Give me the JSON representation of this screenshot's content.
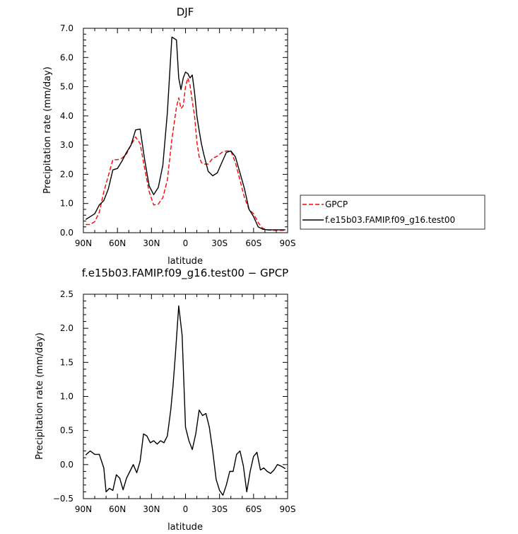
{
  "chart_data": [
    {
      "type": "line",
      "title": "DJF",
      "xlabel": "latitude",
      "ylabel": "Precipitation rate (mm/day)",
      "xlim": [
        90,
        -90
      ],
      "ylim": [
        0,
        7
      ],
      "x_ticks": [
        90,
        60,
        30,
        0,
        -30,
        -60,
        -90
      ],
      "x_tick_labels": [
        "90N",
        "60N",
        "30N",
        "0",
        "30S",
        "60S",
        "90S"
      ],
      "y_ticks": [
        0,
        1,
        2,
        3,
        4,
        5,
        6,
        7
      ],
      "y_tick_labels": [
        "0.0",
        "1.0",
        "2.0",
        "3.0",
        "4.0",
        "5.0",
        "6.0",
        "7.0"
      ],
      "grid": false,
      "legend_position": "right",
      "series": [
        {
          "name": "GPCP",
          "color": "#ff0000",
          "dash": "dashed",
          "x": [
            88,
            84,
            80,
            76,
            72,
            68,
            64,
            60,
            56,
            52,
            48,
            44,
            40,
            36,
            32,
            28,
            24,
            20,
            16,
            12,
            8,
            6,
            4,
            2,
            0,
            -2,
            -4,
            -6,
            -8,
            -10,
            -12,
            -14,
            -16,
            -20,
            -24,
            -28,
            -32,
            -36,
            -40,
            -44,
            -48,
            -52,
            -56,
            -60,
            -64,
            -68,
            -72,
            -76,
            -80,
            -84,
            -88
          ],
          "values": [
            0.28,
            0.28,
            0.38,
            0.7,
            1.4,
            1.95,
            2.5,
            2.5,
            2.55,
            2.7,
            3.0,
            3.28,
            3.05,
            2.2,
            1.4,
            0.95,
            0.98,
            1.2,
            1.8,
            3.2,
            4.3,
            4.62,
            4.25,
            4.35,
            5.0,
            5.3,
            5.05,
            4.5,
            4.0,
            3.1,
            2.6,
            2.4,
            2.35,
            2.35,
            2.55,
            2.62,
            2.75,
            2.8,
            2.8,
            2.4,
            1.8,
            1.2,
            0.8,
            0.65,
            0.35,
            0.15,
            0.1,
            0.08,
            0.08,
            0.08,
            0.08
          ]
        },
        {
          "name": "f.e15b03.FAMIP.f09_g16.test00",
          "color": "#000000",
          "dash": "solid",
          "x": [
            88,
            84,
            80,
            76,
            72,
            68,
            64,
            60,
            56,
            52,
            48,
            44,
            40,
            36,
            32,
            28,
            24,
            20,
            16,
            12,
            8,
            6,
            4,
            2,
            0,
            -2,
            -4,
            -6,
            -8,
            -10,
            -12,
            -14,
            -16,
            -20,
            -24,
            -28,
            -32,
            -36,
            -40,
            -44,
            -48,
            -52,
            -56,
            -60,
            -64,
            -68,
            -72,
            -76,
            -80,
            -84,
            -88
          ],
          "values": [
            0.45,
            0.55,
            0.65,
            0.95,
            1.1,
            1.5,
            2.15,
            2.2,
            2.45,
            2.75,
            3.0,
            3.52,
            3.55,
            2.5,
            1.6,
            1.3,
            1.55,
            2.3,
            4.1,
            6.7,
            6.6,
            5.3,
            4.9,
            5.3,
            5.5,
            5.45,
            5.3,
            5.4,
            4.8,
            4.0,
            3.5,
            3.05,
            2.7,
            2.1,
            1.95,
            2.05,
            2.4,
            2.75,
            2.8,
            2.6,
            2.05,
            1.5,
            0.8,
            0.55,
            0.2,
            0.12,
            0.1,
            0.1,
            0.1,
            0.1,
            0.1
          ]
        }
      ]
    },
    {
      "type": "line",
      "title": "f.e15b03.FAMIP.f09_g16.test00 − GPCP",
      "xlabel": "latitude",
      "ylabel": "Precipitation rate (mm/day)",
      "xlim": [
        90,
        -90
      ],
      "ylim": [
        -0.5,
        2.5
      ],
      "x_ticks": [
        90,
        60,
        30,
        0,
        -30,
        -60,
        -90
      ],
      "x_tick_labels": [
        "90N",
        "60N",
        "30N",
        "0",
        "30S",
        "60S",
        "90S"
      ],
      "y_ticks": [
        -0.5,
        0,
        0.5,
        1,
        1.5,
        2,
        2.5
      ],
      "y_tick_labels": [
        "−0.5",
        "0.0",
        "0.5",
        "1.0",
        "1.5",
        "2.0",
        "2.5"
      ],
      "grid": false,
      "series": [
        {
          "color": "#000000",
          "dash": "solid",
          "x": [
            88,
            84,
            80,
            76,
            72,
            70,
            67,
            64,
            61,
            58,
            55,
            52,
            49,
            46,
            43,
            40,
            37,
            34,
            31,
            28,
            25,
            22,
            19,
            16,
            13,
            11,
            9,
            6,
            3,
            0,
            -3,
            -6,
            -9,
            -12,
            -15,
            -18,
            -21,
            -24,
            -27,
            -30,
            -33,
            -36,
            -39,
            -42,
            -45,
            -48,
            -51,
            -54,
            -57,
            -60,
            -63,
            -66,
            -69,
            -72,
            -75,
            -78,
            -81,
            -84,
            -88
          ],
          "values": [
            0.14,
            0.2,
            0.15,
            0.15,
            -0.05,
            -0.4,
            -0.35,
            -0.38,
            -0.15,
            -0.2,
            -0.37,
            -0.2,
            -0.1,
            0.0,
            -0.12,
            0.05,
            0.45,
            0.42,
            0.32,
            0.35,
            0.3,
            0.35,
            0.32,
            0.42,
            0.8,
            1.15,
            1.6,
            2.33,
            1.9,
            0.55,
            0.35,
            0.22,
            0.45,
            0.8,
            0.72,
            0.75,
            0.55,
            0.2,
            -0.22,
            -0.38,
            -0.45,
            -0.3,
            -0.1,
            -0.1,
            0.15,
            0.2,
            -0.02,
            -0.4,
            -0.1,
            0.12,
            0.18,
            -0.08,
            -0.05,
            -0.1,
            -0.13,
            -0.08,
            0.0,
            -0.02,
            -0.06
          ]
        }
      ]
    }
  ]
}
